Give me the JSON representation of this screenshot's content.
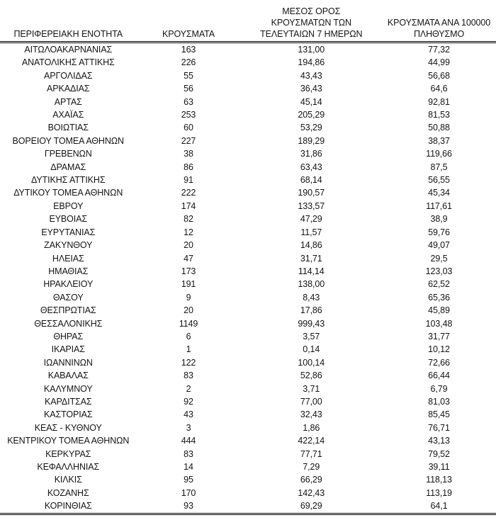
{
  "table": {
    "columns": [
      {
        "label": "ΠΕΡΙΦΕΡΕΙΑΚΗ ΕΝΟΤΗΤΑ",
        "lines": [
          "ΠΕΡΙΦΕΡΕΙΑΚΗ ΕΝΟΤΗΤΑ"
        ]
      },
      {
        "label": "ΚΡΟΥΣΜΑΤΑ",
        "lines": [
          "ΚΡΟΥΣΜΑΤΑ"
        ]
      },
      {
        "label": "ΜΕΣΟΣ ΟΡΟΣ ΚΡΟΥΣΜΑΤΩΝ ΤΩΝ ΤΕΛΕΥΤΑΙΩΝ 7 ΗΜΕΡΩΝ",
        "lines": [
          "ΜΕΣΟΣ ΟΡΟΣ",
          "ΚΡΟΥΣΜΑΤΩΝ ΤΩΝ",
          "ΤΕΛΕΥΤΑΙΩΝ 7 ΗΜΕΡΩΝ"
        ]
      },
      {
        "label": "ΚΡΟΥΣΜΑΤΑ ΑΝΑ 100000 ΠΛΗΘΥΣΜΟ",
        "lines": [
          "ΚΡΟΥΣΜΑΤΑ ΑΝΑ 100000",
          "ΠΛΗΘΥΣΜΟ"
        ]
      }
    ],
    "rows": [
      [
        "ΑΙΤΩΛΟΑΚΑΡΝΑΝΙΑΣ",
        "163",
        "131,00",
        "77,32"
      ],
      [
        "ΑΝΑΤΟΛΙΚΗΣ ΑΤΤΙΚΗΣ",
        "226",
        "194,86",
        "44,99"
      ],
      [
        "ΑΡΓΟΛΙΔΑΣ",
        "55",
        "43,43",
        "56,68"
      ],
      [
        "ΑΡΚΑΔΙΑΣ",
        "56",
        "36,43",
        "64,6"
      ],
      [
        "ΑΡΤΑΣ",
        "63",
        "45,14",
        "92,81"
      ],
      [
        "ΑΧΑΪΑΣ",
        "253",
        "205,29",
        "81,53"
      ],
      [
        "ΒΟΙΩΤΙΑΣ",
        "60",
        "53,29",
        "50,88"
      ],
      [
        "ΒΟΡΕΙΟΥ ΤΟΜΕΑ ΑΘΗΝΩΝ",
        "227",
        "189,29",
        "38,37"
      ],
      [
        "ΓΡΕΒΕΝΩΝ",
        "38",
        "31,86",
        "119,66"
      ],
      [
        "ΔΡΑΜΑΣ",
        "86",
        "63,43",
        "87,5"
      ],
      [
        "ΔΥΤΙΚΗΣ ΑΤΤΙΚΗΣ",
        "91",
        "68,14",
        "56,55"
      ],
      [
        "ΔΥΤΙΚΟΥ ΤΟΜΕΑ ΑΘΗΝΩΝ",
        "222",
        "190,57",
        "45,34"
      ],
      [
        "ΕΒΡΟΥ",
        "174",
        "133,57",
        "117,61"
      ],
      [
        "ΕΥΒΟΙΑΣ",
        "82",
        "47,29",
        "38,9"
      ],
      [
        "ΕΥΡΥΤΑΝΙΑΣ",
        "12",
        "11,57",
        "59,76"
      ],
      [
        "ΖΑΚΥΝΘΟΥ",
        "20",
        "14,86",
        "49,07"
      ],
      [
        "ΗΛΕΙΑΣ",
        "47",
        "31,71",
        "29,5"
      ],
      [
        "ΗΜΑΘΙΑΣ",
        "173",
        "114,14",
        "123,03"
      ],
      [
        "ΗΡΑΚΛΕΙΟΥ",
        "191",
        "138,00",
        "62,52"
      ],
      [
        "ΘΑΣΟΥ",
        "9",
        "8,43",
        "65,36"
      ],
      [
        "ΘΕΣΠΡΩΤΙΑΣ",
        "20",
        "17,86",
        "45,89"
      ],
      [
        "ΘΕΣΣΑΛΟΝΙΚΗΣ",
        "1149",
        "999,43",
        "103,48"
      ],
      [
        "ΘΗΡΑΣ",
        "6",
        "3,57",
        "31,77"
      ],
      [
        "ΙΚΑΡΙΑΣ",
        "1",
        "0,14",
        "10,12"
      ],
      [
        "ΙΩΑΝΝΙΝΩΝ",
        "122",
        "100,14",
        "72,66"
      ],
      [
        "ΚΑΒΑΛΑΣ",
        "83",
        "52,86",
        "66,44"
      ],
      [
        "ΚΑΛΥΜΝΟΥ",
        "2",
        "3,71",
        "6,79"
      ],
      [
        "ΚΑΡΔΙΤΣΑΣ",
        "92",
        "77,00",
        "81,03"
      ],
      [
        "ΚΑΣΤΟΡΙΑΣ",
        "43",
        "32,43",
        "85,45"
      ],
      [
        "ΚΕΑΣ - ΚΥΘΝΟΥ",
        "3",
        "1,86",
        "76,71"
      ],
      [
        "ΚΕΝΤΡΙΚΟΥ ΤΟΜΕΑ ΑΘΗΝΩΝ",
        "444",
        "422,14",
        "43,13"
      ],
      [
        "ΚΕΡΚΥΡΑΣ",
        "83",
        "77,71",
        "79,52"
      ],
      [
        "ΚΕΦΑΛΛΗΝΙΑΣ",
        "14",
        "7,29",
        "39,11"
      ],
      [
        "ΚΙΛΚΙΣ",
        "95",
        "66,29",
        "118,13"
      ],
      [
        "ΚΟΖΑΝΗΣ",
        "170",
        "142,43",
        "113,19"
      ],
      [
        "ΚΟΡΙΝΘΙΑΣ",
        "93",
        "69,29",
        "64,1"
      ]
    ],
    "text_color": "#141414",
    "border_color": "#000000"
  }
}
